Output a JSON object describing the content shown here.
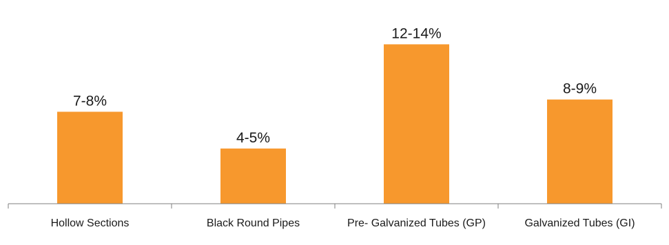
{
  "chart_data": {
    "type": "bar",
    "categories": [
      "Hollow Sections",
      "Black Round Pipes",
      "Pre- Galvanized Tubes (GP)",
      "Galvanized Tubes (GI)"
    ],
    "values": [
      7.5,
      4.5,
      13,
      8.5
    ],
    "data_labels": [
      "7-8%",
      "4-5%",
      "12-14%",
      "8-9%"
    ],
    "bar_color": "#F7982D",
    "ylim": [
      0,
      14.2
    ],
    "grid": false,
    "legend": "none"
  }
}
